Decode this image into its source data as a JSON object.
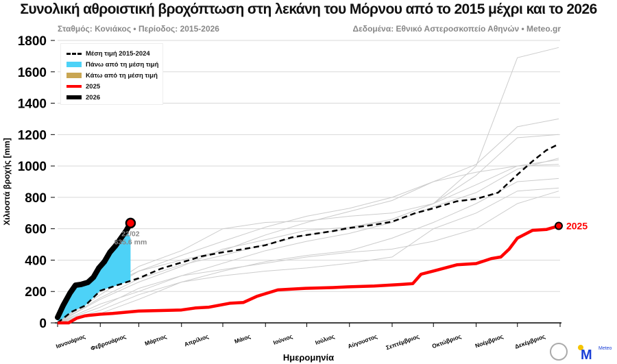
{
  "title": "Συνολική αθροιστική βροχόπτωση στη λεκάνη του Μόρνου από το 2015 μέχρι και το 2026",
  "subtitle_left": "Σταθμός: Κονιάκος • Περίοδος: 2015-2026",
  "subtitle_right": "Δεδομένα: Εθνικό Αστεροσκοπείο Αθηνών • Meteo.gr",
  "logo_text": "Meteo",
  "colors": {
    "above": "#4dd2f7",
    "below": "#c9a653",
    "y2025": "#ff0000",
    "y2026": "#000000",
    "mean": "#000000",
    "history": "#cccccc"
  },
  "chart_data": {
    "type": "line",
    "xlabel": "Ημερομηνία",
    "ylabel": "Χιλιοστά βροχής [mm]",
    "ylim": [
      0,
      1800
    ],
    "yticks": [
      0,
      200,
      400,
      600,
      800,
      1000,
      1200,
      1400,
      1600,
      1800
    ],
    "xticks": [
      "Ιανουάριος",
      "Φεβρουάριος",
      "Μάρτιος",
      "Απρίλιος",
      "Μάιος",
      "Ιούνιος",
      "Ιούλιος",
      "Αύγουστος",
      "Σεπτέμβριος",
      "Οκτώβριος",
      "Νοέμβριος",
      "Δεκέμβριος"
    ],
    "grid": true,
    "legend_position": "top-left",
    "legend": [
      "Μέση τιμή 2015-2024",
      "Πάνω από τη μέση τιμή",
      "Κάτω από τη μέση τιμή",
      "2025",
      "2026"
    ],
    "mean": {
      "name": "Μέση τιμή 2015-2024",
      "day": [
        0,
        10,
        20,
        31,
        45,
        59,
        75,
        90,
        105,
        120,
        135,
        151,
        170,
        181,
        200,
        212,
        230,
        243,
        260,
        273,
        290,
        304,
        320,
        334,
        345,
        355,
        364
      ],
      "value": [
        0,
        70,
        110,
        205,
        245,
        285,
        345,
        385,
        425,
        450,
        470,
        495,
        545,
        560,
        585,
        605,
        625,
        645,
        700,
        730,
        775,
        790,
        830,
        945,
        1030,
        1100,
        1140
      ]
    },
    "series": [
      {
        "name": "2026",
        "day": [
          0,
          4,
          9,
          13,
          17,
          22,
          26,
          30,
          34,
          38,
          42,
          46,
          50,
          53
        ],
        "value": [
          35,
          110,
          190,
          240,
          245,
          258,
          290,
          350,
          390,
          450,
          490,
          540,
          590,
          636
        ]
      },
      {
        "name": "2025",
        "day": [
          0,
          8,
          14,
          20,
          31,
          40,
          59,
          80,
          90,
          100,
          110,
          125,
          135,
          145,
          160,
          180,
          200,
          212,
          230,
          250,
          258,
          264,
          275,
          290,
          304,
          315,
          322,
          328,
          334,
          345,
          355,
          364
        ],
        "value": [
          0,
          0,
          30,
          45,
          55,
          60,
          75,
          80,
          82,
          95,
          100,
          125,
          130,
          170,
          210,
          220,
          225,
          230,
          235,
          245,
          250,
          310,
          335,
          370,
          378,
          410,
          420,
          470,
          540,
          590,
          595,
          618
        ]
      }
    ],
    "history": [
      {
        "day": [
          0,
          31,
          59,
          90,
          120,
          151,
          181,
          212,
          243,
          273,
          304,
          334,
          364
        ],
        "value": [
          0,
          150,
          260,
          360,
          470,
          530,
          590,
          610,
          660,
          760,
          1000,
          1690,
          1755
        ]
      },
      {
        "day": [
          0,
          31,
          59,
          90,
          120,
          151,
          181,
          212,
          243,
          273,
          304,
          334,
          364
        ],
        "value": [
          0,
          220,
          330,
          430,
          520,
          610,
          680,
          730,
          800,
          900,
          1010,
          1250,
          1300
        ]
      },
      {
        "day": [
          0,
          31,
          59,
          90,
          120,
          151,
          181,
          212,
          243,
          273,
          304,
          334,
          364
        ],
        "value": [
          0,
          120,
          200,
          300,
          380,
          460,
          520,
          570,
          640,
          740,
          830,
          980,
          1050
        ]
      },
      {
        "day": [
          0,
          31,
          59,
          90,
          120,
          151,
          181,
          212,
          243,
          273,
          304,
          334,
          364
        ],
        "value": [
          0,
          180,
          330,
          400,
          460,
          560,
          640,
          710,
          780,
          900,
          960,
          1000,
          1010
        ]
      },
      {
        "day": [
          0,
          31,
          59,
          90,
          120,
          151,
          181,
          212,
          243,
          273,
          304,
          334,
          364
        ],
        "value": [
          0,
          60,
          150,
          260,
          330,
          390,
          430,
          460,
          540,
          640,
          760,
          900,
          920
        ]
      },
      {
        "day": [
          0,
          31,
          59,
          90,
          120,
          151,
          181,
          212,
          243,
          273,
          304,
          334,
          364
        ],
        "value": [
          0,
          100,
          220,
          300,
          340,
          380,
          420,
          450,
          470,
          520,
          600,
          760,
          840
        ]
      },
      {
        "day": [
          0,
          31,
          59,
          90,
          120,
          151,
          181,
          212,
          243,
          273,
          304,
          334,
          364
        ],
        "value": [
          0,
          200,
          360,
          460,
          600,
          640,
          650,
          680,
          700,
          760,
          940,
          1180,
          1200
        ]
      },
      {
        "day": [
          0,
          31,
          59,
          90,
          120,
          151,
          181,
          212,
          243,
          273,
          304,
          334,
          364
        ],
        "value": [
          0,
          80,
          180,
          260,
          300,
          330,
          350,
          380,
          420,
          600,
          700,
          840,
          860
        ]
      },
      {
        "day": [
          0,
          31,
          59,
          90,
          120,
          151,
          181,
          212,
          243,
          273,
          304,
          334,
          364
        ],
        "value": [
          0,
          160,
          280,
          370,
          430,
          500,
          560,
          600,
          660,
          760,
          880,
          1000,
          1040
        ]
      }
    ],
    "annotations": {
      "date": "22/02",
      "value": "635.6 mm",
      "label_2025": "2025"
    }
  }
}
